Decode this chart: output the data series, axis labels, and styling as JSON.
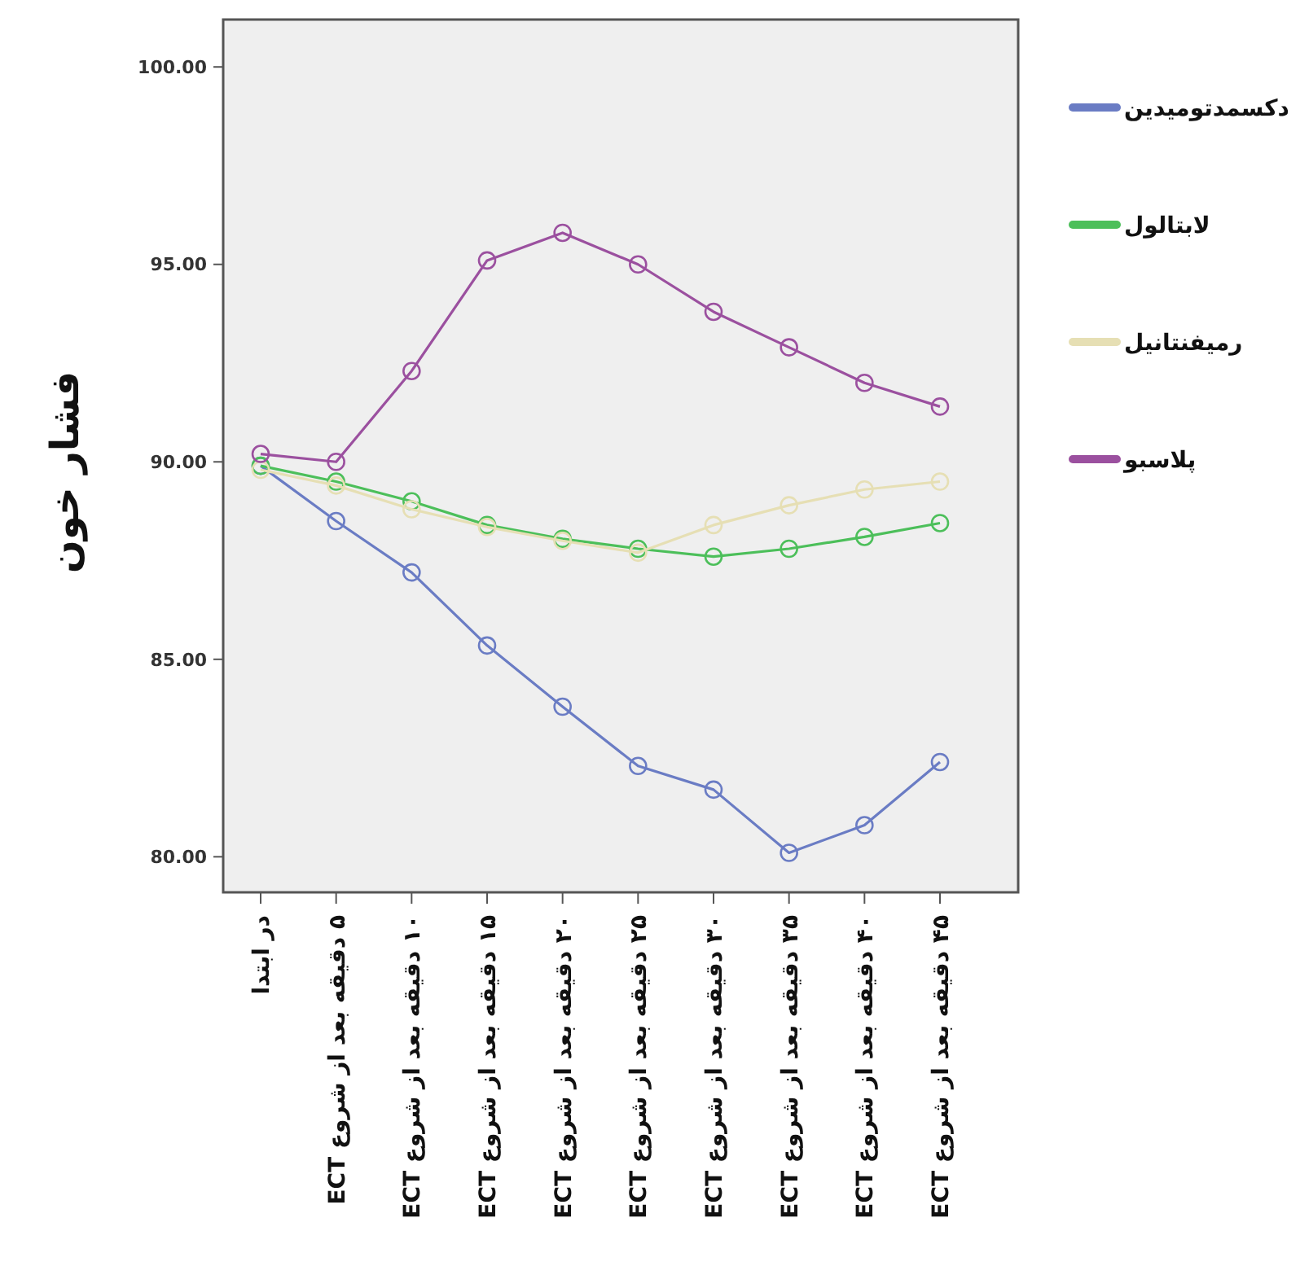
{
  "chart_data": {
    "type": "line",
    "ylabel": "فشار خون",
    "categories": [
      "در ابتدا",
      "۵ دقیقه بعد از شروع ECT",
      "۱۰ دقیقه بعد از شروع ECT",
      "۱۵ دقیقه بعد از شروع ECT",
      "۲۰ دقیقه بعد از شروع ECT",
      "۲۵ دقیقه بعد از شروع ECT",
      "۳۰ دقیقه بعد از شروع ECT",
      "۳۵ دقیقه بعد از شروع ECT",
      "۴۰ دقیقه بعد از شروع ECT",
      "۴۵ دقیقه بعد از شروع ECT"
    ],
    "series": [
      {
        "name": "دکسمدتومیدین",
        "color": "#6a7cc4",
        "values": [
          89.9,
          88.5,
          87.2,
          85.35,
          83.8,
          82.3,
          81.7,
          80.1,
          80.8,
          82.4
        ]
      },
      {
        "name": "لابتالول",
        "color": "#4cbf5a",
        "values": [
          89.9,
          89.5,
          89.0,
          88.4,
          88.05,
          87.8,
          87.6,
          87.8,
          88.1,
          88.45
        ]
      },
      {
        "name": "رمیفنتانیل",
        "color": "#e6dfb4",
        "values": [
          89.8,
          89.4,
          88.8,
          88.35,
          88.0,
          87.7,
          88.4,
          88.9,
          89.3,
          89.5
        ]
      },
      {
        "name": "پلاسبو",
        "color": "#9b509f",
        "values": [
          90.2,
          90.0,
          92.3,
          95.1,
          95.8,
          95.0,
          93.8,
          92.9,
          92.0,
          91.4
        ]
      }
    ],
    "ylim": [
      79.1,
      101.2
    ],
    "yticks": [
      {
        "value": 80,
        "label": "80.00"
      },
      {
        "value": 85,
        "label": "85.00"
      },
      {
        "value": 90,
        "label": "90.00"
      },
      {
        "value": 95,
        "label": "95.00"
      },
      {
        "value": 100,
        "label": "100.00"
      }
    ],
    "grid": false,
    "legend": "right",
    "marker": "circle",
    "line_style": "solid"
  }
}
